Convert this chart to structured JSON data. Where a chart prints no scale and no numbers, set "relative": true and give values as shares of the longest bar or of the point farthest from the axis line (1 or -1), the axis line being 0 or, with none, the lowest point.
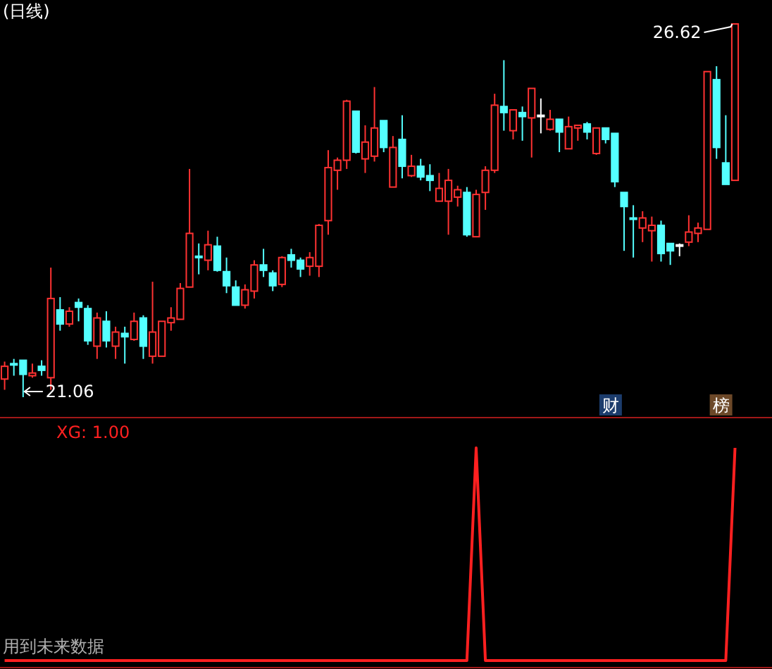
{
  "chart_data": [
    {
      "type": "candlestick",
      "title": "(日线)",
      "categories": [
        null,
        null,
        null,
        null,
        null,
        null,
        null,
        null,
        null,
        null,
        null,
        null,
        null,
        null,
        null,
        null,
        null,
        null,
        null,
        null,
        null,
        null,
        null,
        null,
        null,
        null,
        null,
        null,
        null,
        null,
        null,
        null,
        null,
        null,
        null,
        null,
        null,
        null,
        null,
        null,
        null,
        null,
        null,
        null,
        null,
        null,
        null,
        null,
        null,
        null,
        null,
        null,
        null,
        null,
        null,
        null,
        null,
        null,
        null,
        null,
        null,
        null,
        null,
        null,
        null,
        null,
        null,
        null,
        null,
        null,
        null,
        null,
        null,
        null,
        null,
        null,
        null,
        null,
        null,
        null
      ],
      "ohlc": [
        [
          21.33,
          21.59,
          21.17,
          21.52
        ],
        [
          21.56,
          21.63,
          21.38,
          21.54
        ],
        [
          21.61,
          21.61,
          21.06,
          21.4
        ],
        [
          21.38,
          21.56,
          21.35,
          21.42
        ],
        [
          21.52,
          21.61,
          21.38,
          21.46
        ],
        [
          21.35,
          22.99,
          21.17,
          22.53
        ],
        [
          22.36,
          22.55,
          22.05,
          22.15
        ],
        [
          22.15,
          22.4,
          22.11,
          22.34
        ],
        [
          22.47,
          22.53,
          22.19,
          22.4
        ],
        [
          22.38,
          22.43,
          21.84,
          21.9
        ],
        [
          21.82,
          22.32,
          21.63,
          22.24
        ],
        [
          22.19,
          22.34,
          21.8,
          21.9
        ],
        [
          21.82,
          22.11,
          21.63,
          22.03
        ],
        [
          22.01,
          22.11,
          21.56,
          21.96
        ],
        [
          21.92,
          22.32,
          21.9,
          22.19
        ],
        [
          22.24,
          22.28,
          21.63,
          21.82
        ],
        [
          21.67,
          22.78,
          21.56,
          22.03
        ],
        [
          21.67,
          22.19,
          21.67,
          22.19
        ],
        [
          22.17,
          22.4,
          22.05,
          22.24
        ],
        [
          22.22,
          22.76,
          22.22,
          22.68
        ],
        [
          22.7,
          24.46,
          22.7,
          23.5
        ],
        [
          23.16,
          23.35,
          22.89,
          23.14
        ],
        [
          23.1,
          23.54,
          22.95,
          23.33
        ],
        [
          23.31,
          23.45,
          22.93,
          22.95
        ],
        [
          22.93,
          23.14,
          22.61,
          22.72
        ],
        [
          22.7,
          22.8,
          22.43,
          22.43
        ],
        [
          22.43,
          22.74,
          22.38,
          22.66
        ],
        [
          22.64,
          23.1,
          22.53,
          23.03
        ],
        [
          23.03,
          23.27,
          22.85,
          22.95
        ],
        [
          22.91,
          22.95,
          22.64,
          22.72
        ],
        [
          22.74,
          23.16,
          22.7,
          23.14
        ],
        [
          23.18,
          23.27,
          22.99,
          23.1
        ],
        [
          23.1,
          23.14,
          22.85,
          22.97
        ],
        [
          23.01,
          23.22,
          22.87,
          23.14
        ],
        [
          23.01,
          23.64,
          22.85,
          23.62
        ],
        [
          23.69,
          24.74,
          23.48,
          24.48
        ],
        [
          24.44,
          24.63,
          24.15,
          24.59
        ],
        [
          24.59,
          25.49,
          24.46,
          25.47
        ],
        [
          25.32,
          25.32,
          24.69,
          24.71
        ],
        [
          24.61,
          25.11,
          24.4,
          24.86
        ],
        [
          24.65,
          25.68,
          24.57,
          25.07
        ],
        [
          25.18,
          25.18,
          24.71,
          24.78
        ],
        [
          24.19,
          24.95,
          24.19,
          24.78
        ],
        [
          24.9,
          25.26,
          24.32,
          24.5
        ],
        [
          24.36,
          24.67,
          24.34,
          24.5
        ],
        [
          24.5,
          24.61,
          24.29,
          24.34
        ],
        [
          24.36,
          24.53,
          24.13,
          24.29
        ],
        [
          23.98,
          24.4,
          23.98,
          24.17
        ],
        [
          23.98,
          24.46,
          23.48,
          24.29
        ],
        [
          24.04,
          24.21,
          23.9,
          24.15
        ],
        [
          24.11,
          24.19,
          23.45,
          23.48
        ],
        [
          23.45,
          24.15,
          23.45,
          24.08
        ],
        [
          24.11,
          24.5,
          23.85,
          24.44
        ],
        [
          24.44,
          25.58,
          24.4,
          25.41
        ],
        [
          25.39,
          26.08,
          25.03,
          25.3
        ],
        [
          25.03,
          25.34,
          24.9,
          25.34
        ],
        [
          25.3,
          25.39,
          24.88,
          25.24
        ],
        [
          25.22,
          25.66,
          24.63,
          25.66
        ],
        [
          25.26,
          25.51,
          24.99,
          25.26
        ],
        [
          25.05,
          25.34,
          25.03,
          25.2
        ],
        [
          25.2,
          25.2,
          24.71,
          25.01
        ],
        [
          24.76,
          25.24,
          24.76,
          25.09
        ],
        [
          25.07,
          25.11,
          24.88,
          25.11
        ],
        [
          25.13,
          25.16,
          24.9,
          25.01
        ],
        [
          24.69,
          25.07,
          24.67,
          25.07
        ],
        [
          25.07,
          25.07,
          24.84,
          24.9
        ],
        [
          24.99,
          24.99,
          24.19,
          24.27
        ],
        [
          24.11,
          24.11,
          23.24,
          23.9
        ],
        [
          23.73,
          23.92,
          23.14,
          23.71
        ],
        [
          23.58,
          23.83,
          23.37,
          23.73
        ],
        [
          23.54,
          23.75,
          23.08,
          23.62
        ],
        [
          23.62,
          23.69,
          23.08,
          23.2
        ],
        [
          23.35,
          23.35,
          23.03,
          23.24
        ],
        [
          23.33,
          23.35,
          23.16,
          23.33
        ],
        [
          23.37,
          23.77,
          23.31,
          23.52
        ],
        [
          23.5,
          23.66,
          23.37,
          23.58
        ],
        [
          23.56,
          25.91,
          23.56,
          25.91
        ],
        [
          25.79,
          25.99,
          24.61,
          24.78
        ],
        [
          24.55,
          25.26,
          24.23,
          24.23
        ],
        [
          24.29,
          26.62,
          24.29,
          26.62
        ]
      ],
      "colors": [
        "#ff3232",
        "#54ffff",
        "#54ffff",
        "#ff3232",
        "#54ffff",
        "#ff3232",
        "#54ffff",
        "#ff3232",
        "#54ffff",
        "#54ffff",
        "#ff3232",
        "#54ffff",
        "#ff3232",
        "#54ffff",
        "#ff3232",
        "#54ffff",
        "#ff3232",
        "#ff3232",
        "#ff3232",
        "#ff3232",
        "#ff3232",
        "#54ffff",
        "#ff3232",
        "#54ffff",
        "#54ffff",
        "#54ffff",
        "#ff3232",
        "#ff3232",
        "#54ffff",
        "#54ffff",
        "#ff3232",
        "#54ffff",
        "#54ffff",
        "#ff3232",
        "#ff3232",
        "#ff3232",
        "#ff3232",
        "#ff3232",
        "#54ffff",
        "#ff3232",
        "#ff3232",
        "#54ffff",
        "#ff3232",
        "#54ffff",
        "#ff3232",
        "#54ffff",
        "#54ffff",
        "#ff3232",
        "#ff3232",
        "#ff3232",
        "#54ffff",
        "#ff3232",
        "#ff3232",
        "#ff3232",
        "#54ffff",
        "#ff3232",
        "#54ffff",
        "#ff3232",
        "#ffffff",
        "#ff3232",
        "#54ffff",
        "#ff3232",
        "#ff3232",
        "#54ffff",
        "#ff3232",
        "#54ffff",
        "#54ffff",
        "#54ffff",
        "#54ffff",
        "#ff3232",
        "#ff3232",
        "#54ffff",
        "#54ffff",
        "#ffffff",
        "#ff3232",
        "#ff3232",
        "#ff3232",
        "#54ffff",
        "#54ffff",
        "#ff3232"
      ],
      "annotations": [
        "26.62",
        "21.06",
        "财",
        "榜"
      ]
    },
    {
      "type": "line",
      "title": "XG: 1.00",
      "relative": true,
      "categories": [
        null,
        null,
        null,
        null,
        null,
        null,
        null,
        null,
        null,
        null,
        null,
        null,
        null,
        null,
        null,
        null,
        null,
        null,
        null,
        null,
        null,
        null,
        null,
        null,
        null,
        null,
        null,
        null,
        null,
        null,
        null,
        null,
        null,
        null,
        null,
        null,
        null,
        null,
        null,
        null,
        null,
        null,
        null,
        null,
        null,
        null,
        null,
        null,
        null,
        null,
        null,
        null,
        null,
        null,
        null,
        null,
        null,
        null,
        null,
        null,
        null,
        null,
        null,
        null,
        null,
        null,
        null,
        null,
        null,
        null,
        null,
        null,
        null,
        null,
        null,
        null,
        null,
        null,
        null,
        null
      ],
      "series": [
        {
          "color": "#ff2020",
          "values": [
            0,
            0,
            0,
            0,
            0,
            0,
            0,
            0,
            0,
            0,
            0,
            0,
            0,
            0,
            0,
            0,
            0,
            0,
            0,
            0,
            0,
            0,
            0,
            0,
            0,
            0,
            0,
            0,
            0,
            0,
            0,
            0,
            0,
            0,
            0,
            0,
            0,
            0,
            0,
            0,
            0,
            0,
            0,
            0,
            0,
            0,
            0,
            0,
            0,
            0,
            0,
            1,
            0,
            0,
            0,
            0,
            0,
            0,
            0,
            0,
            0,
            0,
            0,
            0,
            0,
            0,
            0,
            0,
            0,
            0,
            0,
            0,
            0,
            0,
            0,
            0,
            0,
            0,
            0,
            1
          ]
        }
      ],
      "annotations": [
        "用到未来数据"
      ]
    }
  ]
}
